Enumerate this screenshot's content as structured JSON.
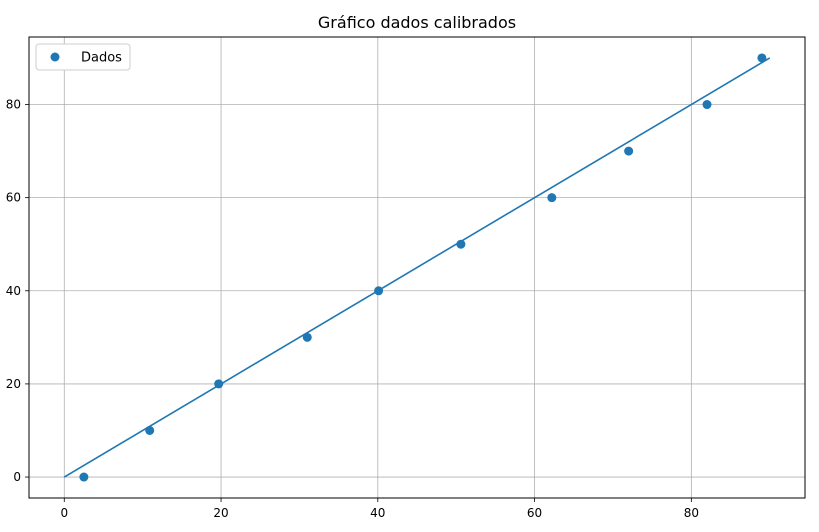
{
  "chart_data": {
    "type": "scatter",
    "title": "Gráfico dados calibrados",
    "xlabel": "",
    "ylabel": "",
    "xlim": [
      -4.5,
      94.5
    ],
    "ylim": [
      -4.5,
      94.5
    ],
    "x_ticks": [
      0,
      20,
      40,
      60,
      80
    ],
    "y_ticks": [
      0,
      20,
      40,
      60,
      80
    ],
    "grid": true,
    "legend_position": "top-left",
    "series": [
      {
        "name": "Dados",
        "kind": "scatter",
        "color": "#1f77b4",
        "points": [
          {
            "x": 2.5,
            "y": 0
          },
          {
            "x": 10.9,
            "y": 10
          },
          {
            "x": 19.7,
            "y": 20
          },
          {
            "x": 31.0,
            "y": 30
          },
          {
            "x": 40.1,
            "y": 40
          },
          {
            "x": 50.6,
            "y": 50
          },
          {
            "x": 62.2,
            "y": 60
          },
          {
            "x": 72.0,
            "y": 70
          },
          {
            "x": 82.0,
            "y": 80
          },
          {
            "x": 89.0,
            "y": 90
          }
        ]
      },
      {
        "kind": "line",
        "color": "#1f77b4",
        "points": [
          {
            "x": 0,
            "y": 0
          },
          {
            "x": 90,
            "y": 90
          }
        ]
      }
    ]
  }
}
